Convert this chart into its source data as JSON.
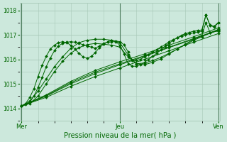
{
  "title": "",
  "xlabel": "Pression niveau de la mer( hPa )",
  "bg_color": "#cce8dc",
  "grid_color": "#a8c8b8",
  "line_color": "#006600",
  "marker_color": "#006600",
  "ylim": [
    1013.55,
    1018.3
  ],
  "yticks": [
    1014,
    1015,
    1016,
    1017,
    1018
  ],
  "xlim": [
    -1,
    97
  ],
  "x_mer": 0,
  "x_jeu": 48,
  "x_ven": 96,
  "series": [
    {
      "x": [
        0,
        2,
        4,
        6,
        8,
        10,
        12,
        14,
        16,
        18,
        20,
        22,
        24,
        26,
        28,
        30,
        32,
        34,
        36,
        38,
        40,
        42,
        44,
        46,
        48,
        50,
        52,
        54,
        56,
        58,
        60,
        62,
        64,
        66,
        68,
        70,
        72,
        74,
        76,
        78,
        80,
        82,
        84,
        86,
        88,
        90,
        92,
        94,
        96
      ],
      "y": [
        1014.1,
        1014.15,
        1014.25,
        1014.5,
        1014.85,
        1015.25,
        1015.7,
        1016.05,
        1016.35,
        1016.55,
        1016.65,
        1016.7,
        1016.72,
        1016.7,
        1016.65,
        1016.6,
        1016.55,
        1016.5,
        1016.45,
        1016.55,
        1016.65,
        1016.7,
        1016.72,
        1016.75,
        1016.72,
        1016.6,
        1016.3,
        1015.95,
        1015.95,
        1016.0,
        1016.1,
        1016.2,
        1016.3,
        1016.4,
        1016.5,
        1016.6,
        1016.72,
        1016.8,
        1016.88,
        1016.95,
        1017.0,
        1017.05,
        1017.08,
        1017.12,
        1017.15,
        1017.8,
        1017.4,
        1017.35,
        1017.5
      ]
    },
    {
      "x": [
        0,
        12,
        24,
        36,
        48,
        60,
        72,
        84,
        96
      ],
      "y": [
        1014.1,
        1014.45,
        1014.9,
        1015.3,
        1015.65,
        1016.0,
        1016.35,
        1016.7,
        1017.05
      ]
    },
    {
      "x": [
        0,
        12,
        24,
        36,
        48,
        60,
        72,
        84,
        96
      ],
      "y": [
        1014.1,
        1014.5,
        1015.0,
        1015.42,
        1015.78,
        1016.12,
        1016.48,
        1016.82,
        1017.18
      ]
    },
    {
      "x": [
        0,
        12,
        24,
        36,
        48,
        60,
        72,
        84,
        96
      ],
      "y": [
        1014.1,
        1014.55,
        1015.1,
        1015.55,
        1015.9,
        1016.22,
        1016.58,
        1016.92,
        1017.28
      ]
    },
    {
      "x": [
        0,
        12,
        24,
        36,
        48,
        60,
        72,
        84,
        96
      ],
      "y": [
        1014.1,
        1014.52,
        1015.05,
        1015.48,
        1015.82,
        1016.15,
        1016.5,
        1016.85,
        1017.2
      ]
    },
    {
      "x": [
        0,
        4,
        8,
        12,
        16,
        20,
        24,
        28,
        32,
        36,
        40,
        44,
        48,
        52,
        56,
        60,
        64,
        68,
        72,
        76,
        80,
        84,
        88,
        92,
        96
      ],
      "y": [
        1014.1,
        1014.2,
        1014.5,
        1015.0,
        1015.5,
        1015.92,
        1016.25,
        1016.48,
        1016.6,
        1016.65,
        1016.62,
        1016.58,
        1016.5,
        1016.1,
        1015.82,
        1015.85,
        1015.95,
        1016.08,
        1016.25,
        1016.42,
        1016.6,
        1016.78,
        1016.92,
        1017.08,
        1017.22
      ]
    },
    {
      "x": [
        0,
        4,
        8,
        12,
        16,
        20,
        24,
        28,
        32,
        36,
        40,
        44,
        48,
        52,
        56,
        60,
        64,
        68,
        72,
        76,
        80,
        84,
        88,
        90,
        92,
        96
      ],
      "y": [
        1014.1,
        1014.3,
        1014.7,
        1015.2,
        1015.7,
        1016.1,
        1016.45,
        1016.68,
        1016.78,
        1016.82,
        1016.82,
        1016.78,
        1016.68,
        1016.18,
        1015.82,
        1015.78,
        1015.88,
        1016.02,
        1016.22,
        1016.42,
        1016.62,
        1016.82,
        1016.98,
        1017.5,
        1017.1,
        1017.15
      ]
    },
    {
      "x": [
        0,
        2,
        4,
        6,
        8,
        10,
        12,
        14,
        16,
        18,
        20,
        22,
        24,
        26,
        28,
        30,
        32,
        34,
        36,
        38,
        40,
        42,
        44,
        46,
        48,
        50,
        52,
        54,
        56,
        58,
        60,
        62,
        64,
        66,
        68,
        70,
        72,
        74,
        76,
        78,
        80,
        82,
        84,
        86,
        88,
        90,
        92,
        94,
        96
      ],
      "y": [
        1014.1,
        1014.2,
        1014.45,
        1014.8,
        1015.3,
        1015.75,
        1016.12,
        1016.42,
        1016.58,
        1016.68,
        1016.72,
        1016.68,
        1016.58,
        1016.42,
        1016.25,
        1016.1,
        1016.05,
        1016.12,
        1016.28,
        1016.48,
        1016.62,
        1016.72,
        1016.78,
        1016.72,
        1016.58,
        1016.22,
        1015.82,
        1015.72,
        1015.72,
        1015.78,
        1015.88,
        1016.0,
        1016.12,
        1016.25,
        1016.38,
        1016.52,
        1016.65,
        1016.78,
        1016.88,
        1016.98,
        1017.05,
        1017.1,
        1017.15,
        1017.18,
        1017.2,
        1017.82,
        1017.38,
        1017.32,
        1017.48
      ]
    }
  ]
}
